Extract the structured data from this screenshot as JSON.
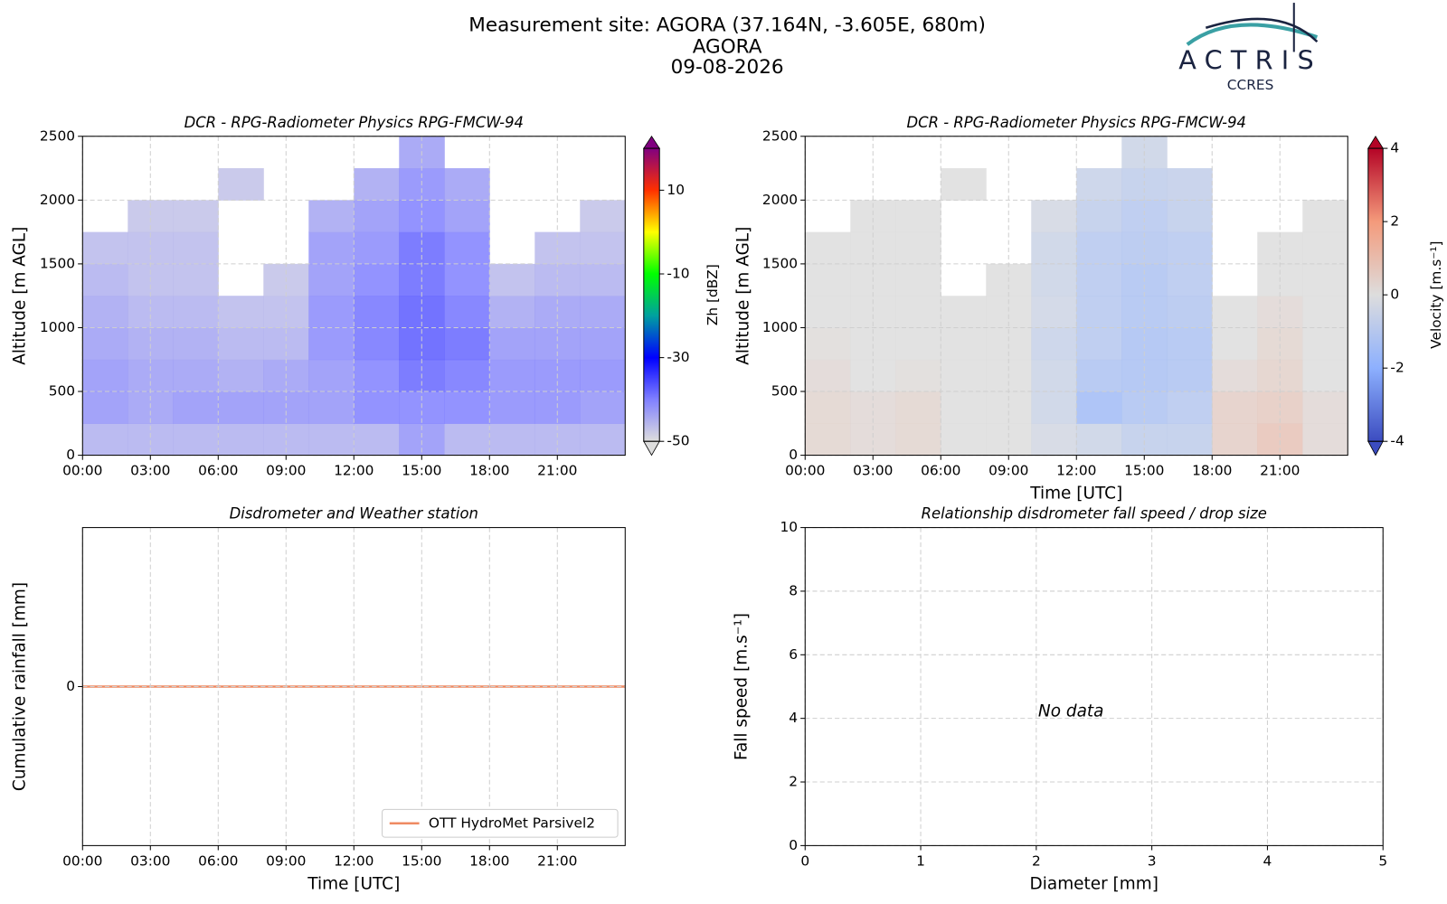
{
  "suptitle": [
    "Measurement site: AGORA (37.164N, -3.605E, 680m)",
    "AGORA",
    "09-08-2026"
  ],
  "logo": {
    "name": "ACTRIS",
    "subtitle": "CCRES"
  },
  "chart_data": [
    {
      "type": "heatmap",
      "title": "DCR - RPG-Radiometer Physics RPG-FMCW-94",
      "ylabel": "Altitude [m AGL]",
      "x_bins": [
        0,
        2,
        4,
        6,
        8,
        10,
        12,
        14,
        16,
        18,
        20,
        22,
        24
      ],
      "y_bins": [
        0,
        250,
        500,
        750,
        1000,
        1250,
        1500,
        1750,
        2000,
        2250,
        2500
      ],
      "values": [
        [
          -45,
          -45,
          -45,
          -45,
          -45,
          -45,
          -45,
          -42,
          -45,
          -45,
          -45,
          -45
        ],
        [
          -42,
          -43,
          -42,
          -42,
          -42,
          -42,
          -40,
          -40,
          -40,
          -41,
          -41,
          -42
        ],
        [
          -42,
          -43,
          -43,
          -44,
          -43,
          -42,
          -40,
          -38,
          -39,
          -41,
          -41,
          -41
        ],
        [
          -43,
          -44,
          -44,
          -45,
          -45,
          -41,
          -39,
          -37,
          -38,
          -42,
          -42,
          -42
        ],
        [
          -44,
          -45,
          -45,
          -46,
          -46,
          -41,
          -39,
          -37,
          -39,
          -44,
          -43,
          -43
        ],
        [
          -45,
          -46,
          -46,
          null,
          -47,
          -42,
          -40,
          -38,
          -40,
          -46,
          -45,
          -45
        ],
        [
          -46,
          -46,
          -46,
          null,
          null,
          -42,
          -41,
          -38,
          -40,
          null,
          -46,
          -46
        ],
        [
          null,
          -47,
          -47,
          null,
          null,
          -44,
          -42,
          -40,
          -42,
          null,
          null,
          -47
        ],
        [
          null,
          null,
          null,
          -47,
          null,
          null,
          -44,
          -41,
          -43,
          null,
          null,
          null
        ],
        [
          null,
          null,
          null,
          null,
          null,
          null,
          null,
          -43,
          null,
          null,
          null,
          null
        ]
      ],
      "xlim": [
        0,
        24
      ],
      "ylim": [
        0,
        2500
      ],
      "xticks": [
        {
          "value": 0,
          "label": "00:00"
        },
        {
          "value": 3,
          "label": "03:00"
        },
        {
          "value": 6,
          "label": "06:00"
        },
        {
          "value": 9,
          "label": "09:00"
        },
        {
          "value": 12,
          "label": "12:00"
        },
        {
          "value": 15,
          "label": "15:00"
        },
        {
          "value": 18,
          "label": "18:00"
        },
        {
          "value": 21,
          "label": "21:00"
        }
      ],
      "yticks": [
        0,
        500,
        1000,
        1500,
        2000,
        2500
      ],
      "grid": true,
      "colorbar": {
        "label": "Zh [dBZ]",
        "lim": [
          -50,
          20
        ],
        "ticks": [
          -50,
          -30,
          -10,
          10
        ],
        "colors": [
          "#dddddd",
          "#8080ff",
          "#0000ff",
          "#00a0a0",
          "#00ff00",
          "#ffff00",
          "#ff3000",
          "#800080"
        ]
      }
    },
    {
      "type": "heatmap",
      "title": "DCR - RPG-Radiometer Physics RPG-FMCW-94",
      "xlabel": "Time [UTC]",
      "ylabel": "Altitude [m AGL]",
      "x_bins": [
        0,
        2,
        4,
        6,
        8,
        10,
        12,
        14,
        16,
        18,
        20,
        22,
        24
      ],
      "y_bins": [
        0,
        250,
        500,
        750,
        1000,
        1250,
        1500,
        1750,
        2000,
        2250,
        2500
      ],
      "values": [
        [
          0.3,
          0.2,
          0.3,
          0,
          0,
          -0.3,
          -0.5,
          -0.8,
          -0.8,
          0.5,
          0.8,
          0.2
        ],
        [
          0.3,
          0.2,
          0.3,
          0,
          0,
          -0.5,
          -1.5,
          -1.2,
          -1,
          0.5,
          0.6,
          0.2
        ],
        [
          0.2,
          0,
          0.1,
          0,
          0,
          -0.5,
          -1.2,
          -1.3,
          -1.2,
          0.2,
          0.4,
          0
        ],
        [
          0.1,
          0,
          0,
          0,
          0,
          -0.6,
          -1,
          -1.3,
          -1.2,
          0,
          0.3,
          0
        ],
        [
          0,
          0,
          0,
          0,
          0,
          -0.4,
          -1,
          -1.2,
          -1.1,
          0,
          0.2,
          0
        ],
        [
          0,
          0,
          0,
          null,
          0,
          -0.5,
          -1,
          -1.2,
          -1,
          null,
          0,
          0
        ],
        [
          0,
          0,
          0,
          null,
          null,
          -0.5,
          -1,
          -1.1,
          -1,
          null,
          0,
          0
        ],
        [
          null,
          0,
          0,
          null,
          null,
          -0.3,
          -0.8,
          -1,
          -0.8,
          null,
          null,
          0
        ],
        [
          null,
          null,
          null,
          0,
          null,
          null,
          -0.6,
          -0.8,
          -0.7,
          null,
          null,
          null
        ],
        [
          null,
          null,
          null,
          null,
          null,
          null,
          null,
          -0.5,
          null,
          null,
          null,
          null
        ]
      ],
      "xlim": [
        0,
        24
      ],
      "ylim": [
        0,
        2500
      ],
      "xticks": [
        {
          "value": 0,
          "label": "00:00"
        },
        {
          "value": 3,
          "label": "03:00"
        },
        {
          "value": 6,
          "label": "06:00"
        },
        {
          "value": 9,
          "label": "09:00"
        },
        {
          "value": 12,
          "label": "12:00"
        },
        {
          "value": 15,
          "label": "15:00"
        },
        {
          "value": 18,
          "label": "18:00"
        },
        {
          "value": 21,
          "label": "21:00"
        }
      ],
      "yticks": [
        0,
        500,
        1000,
        1500,
        2000,
        2500
      ],
      "grid": true,
      "colorbar": {
        "label": "Velocity [m.s⁻¹]",
        "lim": [
          -4,
          4
        ],
        "ticks": [
          -4,
          -2,
          0,
          2,
          4
        ],
        "colors": [
          "#3b4cc0",
          "#8db0fe",
          "#dddddd",
          "#f49a7b",
          "#b40426"
        ]
      }
    },
    {
      "type": "line",
      "title": "Disdrometer and Weather station",
      "xlabel": "Time [UTC]",
      "ylabel": "Cumulative rainfall [mm]",
      "x": [
        0,
        24
      ],
      "series": [
        {
          "name": "OTT HydroMet Parsivel2",
          "color": "#ef8a62",
          "values": [
            0,
            0
          ]
        }
      ],
      "xlim": [
        0,
        24
      ],
      "ylim": [
        -0.05,
        0.05
      ],
      "xticks": [
        {
          "value": 0,
          "label": "00:00"
        },
        {
          "value": 3,
          "label": "03:00"
        },
        {
          "value": 6,
          "label": "06:00"
        },
        {
          "value": 9,
          "label": "09:00"
        },
        {
          "value": 12,
          "label": "12:00"
        },
        {
          "value": 15,
          "label": "15:00"
        },
        {
          "value": 18,
          "label": "18:00"
        },
        {
          "value": 21,
          "label": "21:00"
        }
      ],
      "yticks": [
        0
      ],
      "grid": true,
      "legend": "lower right"
    },
    {
      "type": "scatter",
      "title": "Relationship disdrometer fall speed / drop size",
      "xlabel": "Diameter [mm]",
      "ylabel": "Fall speed [m.s⁻¹]",
      "x": [],
      "values": [],
      "annotation": "No data",
      "xlim": [
        0,
        5
      ],
      "ylim": [
        0,
        10
      ],
      "xticks": [
        0,
        1,
        2,
        3,
        4,
        5
      ],
      "yticks": [
        0,
        2,
        4,
        6,
        8,
        10
      ],
      "grid": true
    }
  ]
}
